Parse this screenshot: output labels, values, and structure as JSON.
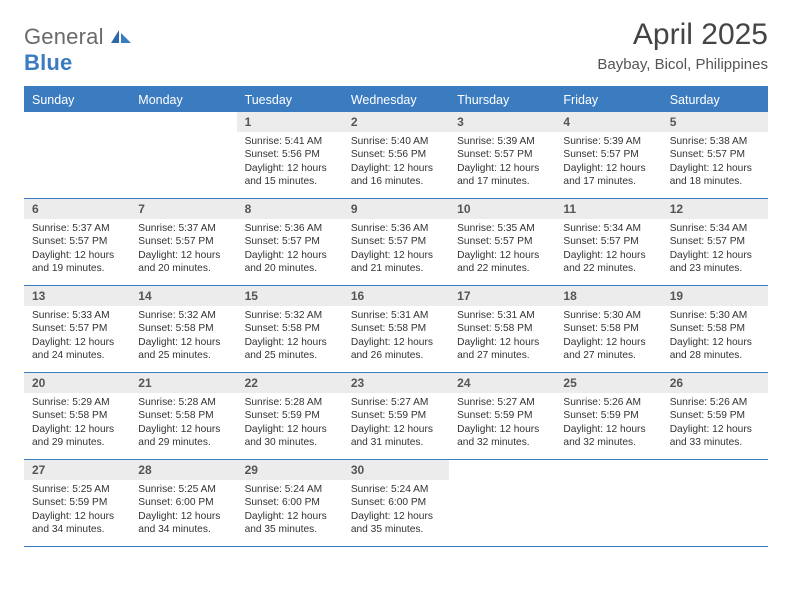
{
  "logo": {
    "general": "General",
    "blue": "Blue"
  },
  "title": "April 2025",
  "subtitle": "Baybay, Bicol, Philippines",
  "colors": {
    "accent": "#3b7cc0",
    "header_bg": "#ececec",
    "text": "#333333",
    "title_text": "#444444"
  },
  "weekdays": [
    "Sunday",
    "Monday",
    "Tuesday",
    "Wednesday",
    "Thursday",
    "Friday",
    "Saturday"
  ],
  "weeks": [
    [
      null,
      null,
      {
        "n": "1",
        "sunrise": "Sunrise: 5:41 AM",
        "sunset": "Sunset: 5:56 PM",
        "daylight": "Daylight: 12 hours and 15 minutes."
      },
      {
        "n": "2",
        "sunrise": "Sunrise: 5:40 AM",
        "sunset": "Sunset: 5:56 PM",
        "daylight": "Daylight: 12 hours and 16 minutes."
      },
      {
        "n": "3",
        "sunrise": "Sunrise: 5:39 AM",
        "sunset": "Sunset: 5:57 PM",
        "daylight": "Daylight: 12 hours and 17 minutes."
      },
      {
        "n": "4",
        "sunrise": "Sunrise: 5:39 AM",
        "sunset": "Sunset: 5:57 PM",
        "daylight": "Daylight: 12 hours and 17 minutes."
      },
      {
        "n": "5",
        "sunrise": "Sunrise: 5:38 AM",
        "sunset": "Sunset: 5:57 PM",
        "daylight": "Daylight: 12 hours and 18 minutes."
      }
    ],
    [
      {
        "n": "6",
        "sunrise": "Sunrise: 5:37 AM",
        "sunset": "Sunset: 5:57 PM",
        "daylight": "Daylight: 12 hours and 19 minutes."
      },
      {
        "n": "7",
        "sunrise": "Sunrise: 5:37 AM",
        "sunset": "Sunset: 5:57 PM",
        "daylight": "Daylight: 12 hours and 20 minutes."
      },
      {
        "n": "8",
        "sunrise": "Sunrise: 5:36 AM",
        "sunset": "Sunset: 5:57 PM",
        "daylight": "Daylight: 12 hours and 20 minutes."
      },
      {
        "n": "9",
        "sunrise": "Sunrise: 5:36 AM",
        "sunset": "Sunset: 5:57 PM",
        "daylight": "Daylight: 12 hours and 21 minutes."
      },
      {
        "n": "10",
        "sunrise": "Sunrise: 5:35 AM",
        "sunset": "Sunset: 5:57 PM",
        "daylight": "Daylight: 12 hours and 22 minutes."
      },
      {
        "n": "11",
        "sunrise": "Sunrise: 5:34 AM",
        "sunset": "Sunset: 5:57 PM",
        "daylight": "Daylight: 12 hours and 22 minutes."
      },
      {
        "n": "12",
        "sunrise": "Sunrise: 5:34 AM",
        "sunset": "Sunset: 5:57 PM",
        "daylight": "Daylight: 12 hours and 23 minutes."
      }
    ],
    [
      {
        "n": "13",
        "sunrise": "Sunrise: 5:33 AM",
        "sunset": "Sunset: 5:57 PM",
        "daylight": "Daylight: 12 hours and 24 minutes."
      },
      {
        "n": "14",
        "sunrise": "Sunrise: 5:32 AM",
        "sunset": "Sunset: 5:58 PM",
        "daylight": "Daylight: 12 hours and 25 minutes."
      },
      {
        "n": "15",
        "sunrise": "Sunrise: 5:32 AM",
        "sunset": "Sunset: 5:58 PM",
        "daylight": "Daylight: 12 hours and 25 minutes."
      },
      {
        "n": "16",
        "sunrise": "Sunrise: 5:31 AM",
        "sunset": "Sunset: 5:58 PM",
        "daylight": "Daylight: 12 hours and 26 minutes."
      },
      {
        "n": "17",
        "sunrise": "Sunrise: 5:31 AM",
        "sunset": "Sunset: 5:58 PM",
        "daylight": "Daylight: 12 hours and 27 minutes."
      },
      {
        "n": "18",
        "sunrise": "Sunrise: 5:30 AM",
        "sunset": "Sunset: 5:58 PM",
        "daylight": "Daylight: 12 hours and 27 minutes."
      },
      {
        "n": "19",
        "sunrise": "Sunrise: 5:30 AM",
        "sunset": "Sunset: 5:58 PM",
        "daylight": "Daylight: 12 hours and 28 minutes."
      }
    ],
    [
      {
        "n": "20",
        "sunrise": "Sunrise: 5:29 AM",
        "sunset": "Sunset: 5:58 PM",
        "daylight": "Daylight: 12 hours and 29 minutes."
      },
      {
        "n": "21",
        "sunrise": "Sunrise: 5:28 AM",
        "sunset": "Sunset: 5:58 PM",
        "daylight": "Daylight: 12 hours and 29 minutes."
      },
      {
        "n": "22",
        "sunrise": "Sunrise: 5:28 AM",
        "sunset": "Sunset: 5:59 PM",
        "daylight": "Daylight: 12 hours and 30 minutes."
      },
      {
        "n": "23",
        "sunrise": "Sunrise: 5:27 AM",
        "sunset": "Sunset: 5:59 PM",
        "daylight": "Daylight: 12 hours and 31 minutes."
      },
      {
        "n": "24",
        "sunrise": "Sunrise: 5:27 AM",
        "sunset": "Sunset: 5:59 PM",
        "daylight": "Daylight: 12 hours and 32 minutes."
      },
      {
        "n": "25",
        "sunrise": "Sunrise: 5:26 AM",
        "sunset": "Sunset: 5:59 PM",
        "daylight": "Daylight: 12 hours and 32 minutes."
      },
      {
        "n": "26",
        "sunrise": "Sunrise: 5:26 AM",
        "sunset": "Sunset: 5:59 PM",
        "daylight": "Daylight: 12 hours and 33 minutes."
      }
    ],
    [
      {
        "n": "27",
        "sunrise": "Sunrise: 5:25 AM",
        "sunset": "Sunset: 5:59 PM",
        "daylight": "Daylight: 12 hours and 34 minutes."
      },
      {
        "n": "28",
        "sunrise": "Sunrise: 5:25 AM",
        "sunset": "Sunset: 6:00 PM",
        "daylight": "Daylight: 12 hours and 34 minutes."
      },
      {
        "n": "29",
        "sunrise": "Sunrise: 5:24 AM",
        "sunset": "Sunset: 6:00 PM",
        "daylight": "Daylight: 12 hours and 35 minutes."
      },
      {
        "n": "30",
        "sunrise": "Sunrise: 5:24 AM",
        "sunset": "Sunset: 6:00 PM",
        "daylight": "Daylight: 12 hours and 35 minutes."
      },
      null,
      null,
      null
    ]
  ]
}
